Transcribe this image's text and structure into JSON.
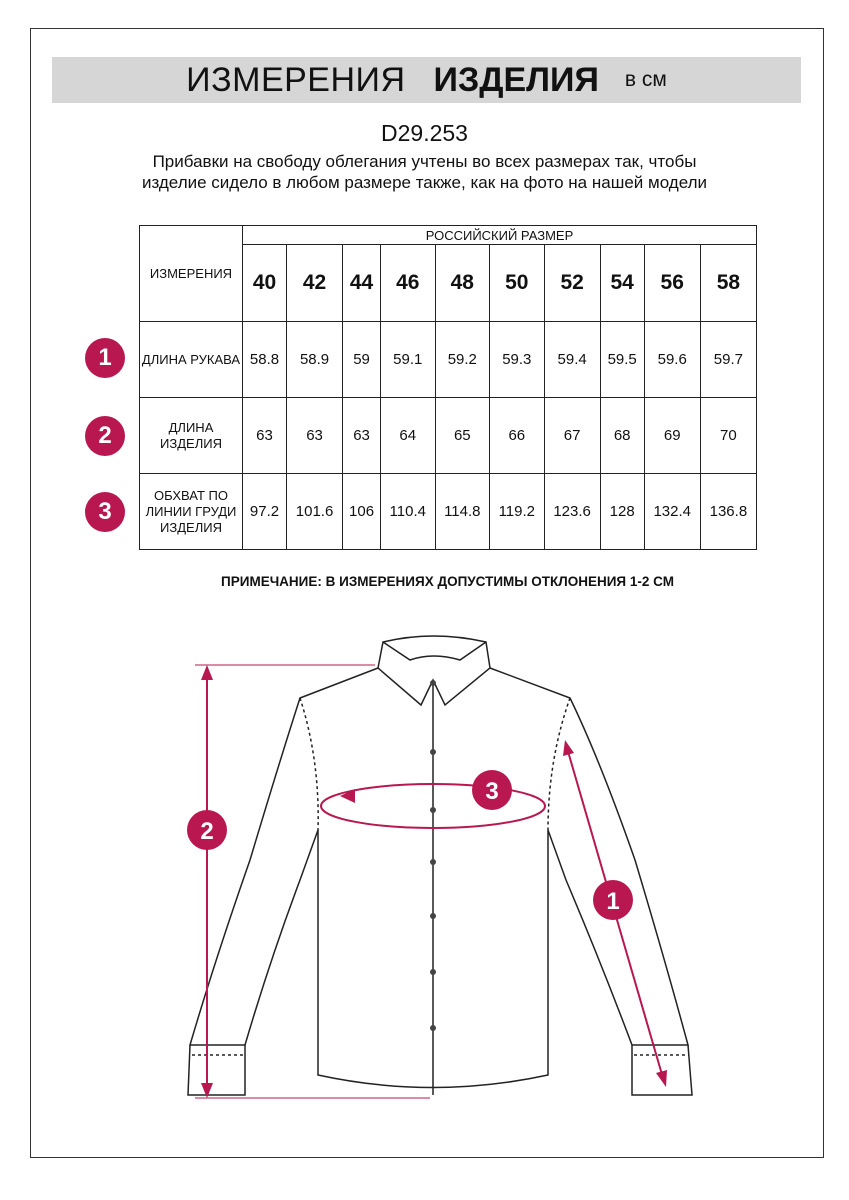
{
  "header": {
    "title_regular": "ИЗМЕРЕНИЯ",
    "title_bold": "ИЗДЕЛИЯ",
    "unit": "в см"
  },
  "product_code": "D29.253",
  "description": "Прибавки на свободу облегания учтены во всех размерах так, чтобы изделие сидело в любом размере также, как на фото на нашей модели",
  "table": {
    "corner_label": "ИЗМЕРЕНИЯ",
    "size_group_label": "РОССИЙСКИЙ РАЗМЕР",
    "sizes": [
      "40",
      "42",
      "44",
      "46",
      "48",
      "50",
      "52",
      "54",
      "56",
      "58"
    ],
    "rows": [
      {
        "badge": "1",
        "label": "ДЛИНА РУКАВА",
        "values": [
          "58.8",
          "58.9",
          "59",
          "59.1",
          "59.2",
          "59.3",
          "59.4",
          "59.5",
          "59.6",
          "59.7"
        ]
      },
      {
        "badge": "2",
        "label": "ДЛИНА ИЗДЕЛИЯ",
        "values": [
          "63",
          "63",
          "63",
          "64",
          "65",
          "66",
          "67",
          "68",
          "69",
          "70"
        ]
      },
      {
        "badge": "3",
        "label": "ОБХВАТ ПО ЛИНИИ ГРУДИ ИЗДЕЛИЯ",
        "values": [
          "97.2",
          "101.6",
          "106",
          "110.4",
          "114.8",
          "119.2",
          "123.6",
          "128",
          "132.4",
          "136.8"
        ]
      }
    ]
  },
  "remark": "ПРИМЕЧАНИЕ: В ИЗМЕРЕНИЯХ ДОПУСТИМЫ ОТКЛОНЕНИЯ 1-2 СМ",
  "diagram": {
    "marker_sleeve": "1",
    "marker_length": "2",
    "marker_chest": "3"
  },
  "colors": {
    "accent": "#b8174f",
    "banner": "#d6d6d6"
  }
}
